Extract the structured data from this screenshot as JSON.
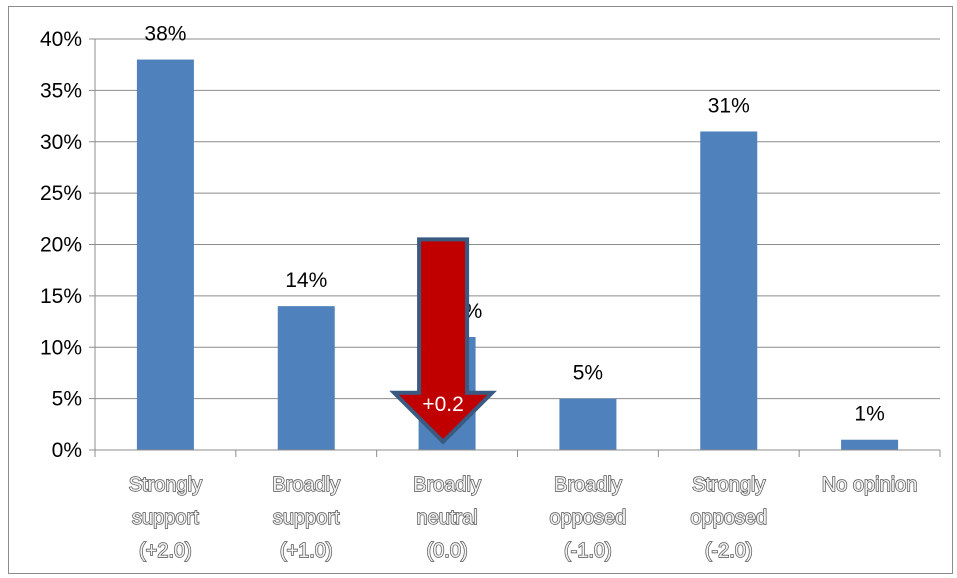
{
  "chart_data": {
    "type": "bar",
    "categories": [
      [
        "Strongly",
        "support",
        "(+2.0)"
      ],
      [
        "Broadly",
        "support",
        "(+1.0)"
      ],
      [
        "Broadly",
        "neutral",
        "(0.0)"
      ],
      [
        "Broadly",
        "opposed",
        "(-1.0)"
      ],
      [
        "Strongly",
        "opposed",
        "(-2.0)"
      ],
      [
        "No opinion"
      ]
    ],
    "values": [
      38,
      14,
      11,
      5,
      31,
      1
    ],
    "value_labels": [
      "38%",
      "14%",
      "11%",
      "5%",
      "31%",
      "1%"
    ],
    "yticks": [
      "0%",
      "5%",
      "10%",
      "15%",
      "20%",
      "25%",
      "30%",
      "35%",
      "40%"
    ],
    "ylim": [
      0,
      40
    ],
    "grid": true,
    "colors": {
      "bar": "#4f81bd",
      "arrow": "#c00000",
      "arrow_border": "#3a5a82"
    },
    "annotation": {
      "text": "+0.2",
      "points_to_category": 2,
      "direction": "down",
      "top_value": 20.5,
      "tip_value": 0.8
    }
  }
}
